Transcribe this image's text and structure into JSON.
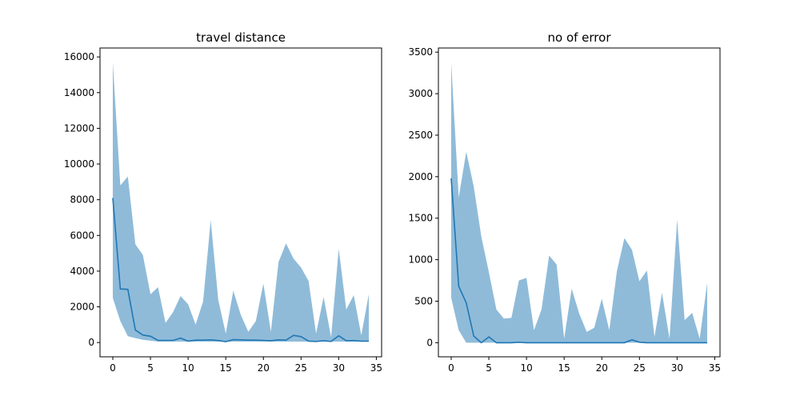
{
  "chart_data": [
    {
      "type": "area",
      "title": "travel distance",
      "xlabel": "",
      "ylabel": "",
      "xlim": [
        -1.7,
        35.7
      ],
      "ylim": [
        -800,
        16500
      ],
      "xticks": [
        0,
        5,
        10,
        15,
        20,
        25,
        30,
        35
      ],
      "yticks": [
        0,
        2000,
        4000,
        6000,
        8000,
        10000,
        12000,
        14000,
        16000
      ],
      "x": [
        0,
        1,
        2,
        3,
        4,
        5,
        6,
        7,
        8,
        9,
        10,
        11,
        12,
        13,
        14,
        15,
        16,
        17,
        18,
        19,
        20,
        21,
        22,
        23,
        24,
        25,
        26,
        27,
        28,
        29,
        30,
        31,
        32,
        33,
        34
      ],
      "series": [
        {
          "kind": "line",
          "color": "#1f77b4",
          "values": [
            8100,
            3000,
            2980,
            700,
            420,
            350,
            120,
            120,
            120,
            250,
            80,
            130,
            130,
            150,
            110,
            50,
            160,
            150,
            130,
            130,
            120,
            100,
            150,
            130,
            400,
            330,
            80,
            60,
            100,
            60,
            380,
            100,
            110,
            80,
            80
          ]
        },
        {
          "kind": "band",
          "color": "#1f77b4",
          "opacity": 0.5,
          "lower": [
            2500,
            1200,
            350,
            250,
            150,
            100,
            50,
            50,
            50,
            50,
            50,
            50,
            50,
            50,
            50,
            50,
            50,
            50,
            50,
            50,
            50,
            50,
            50,
            50,
            50,
            50,
            50,
            50,
            50,
            50,
            50,
            50,
            50,
            50,
            50
          ],
          "upper": [
            15700,
            8800,
            9300,
            5500,
            4900,
            2700,
            3100,
            1100,
            1700,
            2600,
            2150,
            1000,
            2300,
            6850,
            2400,
            500,
            2900,
            1550,
            600,
            1200,
            3300,
            600,
            4500,
            5550,
            4700,
            4200,
            3450,
            500,
            2550,
            300,
            5250,
            1850,
            2650,
            400,
            2700
          ]
        }
      ]
    },
    {
      "type": "area",
      "title": "no of error",
      "xlabel": "",
      "ylabel": "",
      "xlim": [
        -1.7,
        35.7
      ],
      "ylim": [
        -170,
        3550
      ],
      "xticks": [
        0,
        5,
        10,
        15,
        20,
        25,
        30,
        35
      ],
      "yticks": [
        0,
        500,
        1000,
        1500,
        2000,
        2500,
        3000,
        3500
      ],
      "x": [
        0,
        1,
        2,
        3,
        4,
        5,
        6,
        7,
        8,
        9,
        10,
        11,
        12,
        13,
        14,
        15,
        16,
        17,
        18,
        19,
        20,
        21,
        22,
        23,
        24,
        25,
        26,
        27,
        28,
        29,
        30,
        31,
        32,
        33,
        34
      ],
      "series": [
        {
          "kind": "line",
          "color": "#1f77b4",
          "values": [
            1980,
            680,
            480,
            80,
            0,
            70,
            0,
            0,
            0,
            5,
            0,
            0,
            0,
            0,
            0,
            0,
            0,
            0,
            0,
            0,
            0,
            0,
            0,
            0,
            35,
            5,
            0,
            0,
            0,
            0,
            0,
            0,
            0,
            0,
            0
          ]
        },
        {
          "kind": "band",
          "color": "#1f77b4",
          "opacity": 0.5,
          "lower": [
            540,
            150,
            0,
            0,
            0,
            0,
            0,
            0,
            0,
            0,
            0,
            0,
            0,
            0,
            0,
            0,
            0,
            0,
            0,
            0,
            0,
            0,
            0,
            0,
            0,
            0,
            0,
            0,
            0,
            0,
            0,
            0,
            0,
            0,
            0
          ],
          "upper": [
            3370,
            1750,
            2300,
            1880,
            1280,
            850,
            400,
            290,
            300,
            750,
            780,
            150,
            400,
            1050,
            940,
            50,
            650,
            350,
            130,
            180,
            530,
            150,
            860,
            1260,
            1120,
            740,
            870,
            70,
            600,
            50,
            1480,
            270,
            360,
            50,
            720
          ]
        }
      ]
    }
  ]
}
